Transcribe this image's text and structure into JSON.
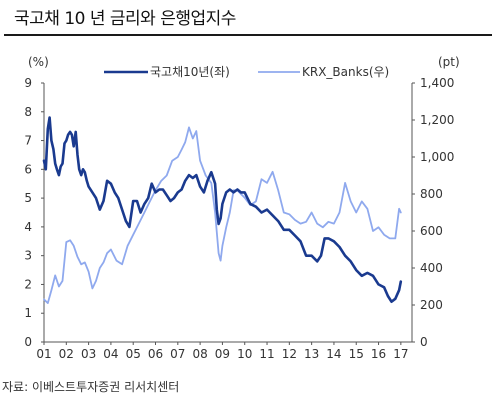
{
  "title": "국고채 10 년 금리와 은행업지수",
  "source": "자료: 이베스트투자증권 리서치센터",
  "chart_data": {
    "type": "line",
    "left_unit": "(%)",
    "right_unit": "(pt)",
    "left_ylim": [
      0,
      9
    ],
    "right_ylim": [
      0,
      1400
    ],
    "left_ticks": [
      "0",
      "1",
      "2",
      "3",
      "4",
      "5",
      "6",
      "7",
      "8",
      "9"
    ],
    "right_ticks": [
      "0",
      "200",
      "400",
      "600",
      "800",
      "1,000",
      "1,200",
      "1,400"
    ],
    "x_range": [
      2001,
      2017.5
    ],
    "x_tick_labels": [
      "01",
      "02",
      "03",
      "04",
      "05",
      "06",
      "07",
      "08",
      "09",
      "10",
      "11",
      "12",
      "13",
      "14",
      "15",
      "16",
      "17"
    ],
    "grid": false,
    "legend_position": "top-center",
    "colors": {
      "rate": "#1a3a8f",
      "banks": "#8fa9ee"
    },
    "series": [
      {
        "name": "국고채10년(좌)",
        "axis": "left",
        "x": [
          2001.0,
          2001.08,
          2001.17,
          2001.25,
          2001.33,
          2001.42,
          2001.5,
          2001.58,
          2001.67,
          2001.75,
          2001.83,
          2001.92,
          2002.0,
          2002.08,
          2002.17,
          2002.25,
          2002.33,
          2002.42,
          2002.5,
          2002.58,
          2002.67,
          2002.75,
          2002.83,
          2002.92,
          2003.0,
          2003.17,
          2003.33,
          2003.5,
          2003.67,
          2003.83,
          2004.0,
          2004.17,
          2004.33,
          2004.5,
          2004.67,
          2004.83,
          2005.0,
          2005.17,
          2005.33,
          2005.5,
          2005.67,
          2005.83,
          2006.0,
          2006.17,
          2006.33,
          2006.5,
          2006.67,
          2006.83,
          2007.0,
          2007.17,
          2007.33,
          2007.5,
          2007.67,
          2007.83,
          2008.0,
          2008.17,
          2008.33,
          2008.5,
          2008.67,
          2008.75,
          2008.83,
          2008.92,
          2009.0,
          2009.17,
          2009.33,
          2009.5,
          2009.67,
          2009.83,
          2010.0,
          2010.25,
          2010.5,
          2010.75,
          2011.0,
          2011.25,
          2011.5,
          2011.75,
          2012.0,
          2012.25,
          2012.5,
          2012.75,
          2013.0,
          2013.25,
          2013.42,
          2013.58,
          2013.75,
          2014.0,
          2014.25,
          2014.5,
          2014.75,
          2015.0,
          2015.25,
          2015.5,
          2015.75,
          2016.0,
          2016.25,
          2016.42,
          2016.58,
          2016.75,
          2016.92,
          2017.0
        ],
        "values": [
          6.3,
          6.0,
          7.4,
          7.8,
          7.0,
          6.7,
          6.2,
          6.0,
          5.8,
          6.1,
          6.2,
          6.9,
          7.0,
          7.2,
          7.3,
          7.2,
          6.8,
          7.3,
          6.5,
          6.0,
          5.8,
          6.0,
          5.9,
          5.6,
          5.4,
          5.2,
          5.0,
          4.6,
          4.9,
          5.6,
          5.5,
          5.2,
          5.0,
          4.6,
          4.2,
          4.0,
          4.9,
          4.9,
          4.5,
          4.8,
          5.0,
          5.5,
          5.2,
          5.3,
          5.3,
          5.1,
          4.9,
          5.0,
          5.2,
          5.3,
          5.6,
          5.8,
          5.7,
          5.8,
          5.4,
          5.2,
          5.6,
          5.9,
          5.5,
          4.6,
          4.1,
          4.3,
          4.8,
          5.2,
          5.3,
          5.2,
          5.3,
          5.2,
          5.2,
          4.8,
          4.7,
          4.5,
          4.6,
          4.4,
          4.2,
          3.9,
          3.9,
          3.7,
          3.5,
          3.0,
          3.0,
          2.8,
          3.0,
          3.6,
          3.6,
          3.5,
          3.3,
          3.0,
          2.8,
          2.5,
          2.3,
          2.4,
          2.3,
          2.0,
          1.9,
          1.6,
          1.4,
          1.5,
          1.8,
          2.1
        ]
      },
      {
        "name": "KRX_Banks(우)",
        "axis": "right",
        "x": [
          2001.0,
          2001.17,
          2001.33,
          2001.5,
          2001.67,
          2001.83,
          2002.0,
          2002.17,
          2002.33,
          2002.5,
          2002.67,
          2002.83,
          2003.0,
          2003.17,
          2003.33,
          2003.5,
          2003.67,
          2003.83,
          2004.0,
          2004.25,
          2004.5,
          2004.75,
          2005.0,
          2005.25,
          2005.5,
          2005.75,
          2006.0,
          2006.25,
          2006.5,
          2006.75,
          2007.0,
          2007.17,
          2007.33,
          2007.5,
          2007.67,
          2007.83,
          2008.0,
          2008.25,
          2008.5,
          2008.67,
          2008.83,
          2008.92,
          2009.0,
          2009.17,
          2009.33,
          2009.5,
          2009.67,
          2009.83,
          2010.0,
          2010.25,
          2010.5,
          2010.75,
          2011.0,
          2011.25,
          2011.5,
          2011.75,
          2012.0,
          2012.25,
          2012.5,
          2012.75,
          2013.0,
          2013.25,
          2013.5,
          2013.75,
          2014.0,
          2014.25,
          2014.5,
          2014.75,
          2015.0,
          2015.25,
          2015.5,
          2015.75,
          2016.0,
          2016.25,
          2016.5,
          2016.75,
          2016.92,
          2017.0
        ],
        "values": [
          230,
          210,
          280,
          360,
          300,
          330,
          540,
          550,
          520,
          460,
          420,
          430,
          380,
          290,
          330,
          400,
          430,
          480,
          500,
          440,
          420,
          520,
          580,
          640,
          700,
          760,
          820,
          870,
          900,
          980,
          1000,
          1040,
          1080,
          1160,
          1100,
          1140,
          980,
          900,
          860,
          700,
          480,
          440,
          520,
          620,
          700,
          820,
          820,
          800,
          780,
          740,
          760,
          880,
          860,
          920,
          820,
          700,
          690,
          660,
          640,
          650,
          700,
          640,
          620,
          650,
          640,
          700,
          860,
          760,
          700,
          760,
          720,
          600,
          620,
          580,
          560,
          560,
          720,
          700
        ]
      }
    ]
  }
}
